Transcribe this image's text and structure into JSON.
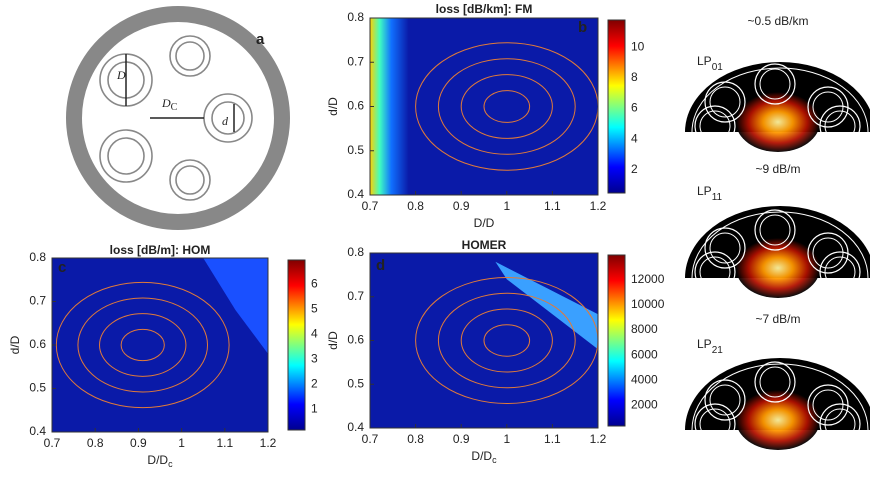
{
  "schematic": {
    "label": "a",
    "pitch": "D",
    "pitch_sub": "C",
    "outer": "D",
    "inner": "d"
  },
  "panels": [
    {
      "label": "b",
      "title": "loss [dB/km]: FM",
      "y_label": "d/D",
      "x_label": "D/D",
      "x_label_sub": null,
      "yticks": [
        0.4,
        0.5,
        0.6,
        0.7,
        0.8
      ],
      "xticks": [
        0.7,
        0.8,
        0.9,
        1,
        1.1,
        1.2
      ],
      "colorbar_ticks": [
        2,
        4,
        6,
        8,
        10
      ]
    },
    {
      "label": "c",
      "title": "loss [dB/m]: HOM",
      "y_label": "d/D",
      "x_label": "D/D",
      "x_label_sub": "c",
      "yticks": [
        0.4,
        0.5,
        0.6,
        0.7,
        0.8
      ],
      "xticks": [
        0.7,
        0.8,
        0.9,
        1,
        1.1,
        1.2
      ],
      "colorbar_ticks": [
        1,
        2,
        3,
        4,
        5,
        6
      ]
    },
    {
      "label": "d",
      "title": "HOMER",
      "y_label": "d/D",
      "x_label": "D/D",
      "x_label_sub": "c",
      "yticks": [
        0.4,
        0.5,
        0.6,
        0.7,
        0.8
      ],
      "xticks": [
        0.7,
        0.8,
        0.9,
        1,
        1.1,
        1.2
      ],
      "colorbar_ticks": [
        2000,
        4000,
        6000,
        8000,
        10000,
        12000
      ]
    }
  ],
  "modes": [
    {
      "loss": "~0.5 dB/km",
      "name": "LP",
      "sub": "01"
    },
    {
      "loss": "~9 dB/m",
      "name": "LP",
      "sub": "11"
    },
    {
      "loss": "~7 dB/m",
      "name": "LP",
      "sub": "21"
    }
  ]
}
